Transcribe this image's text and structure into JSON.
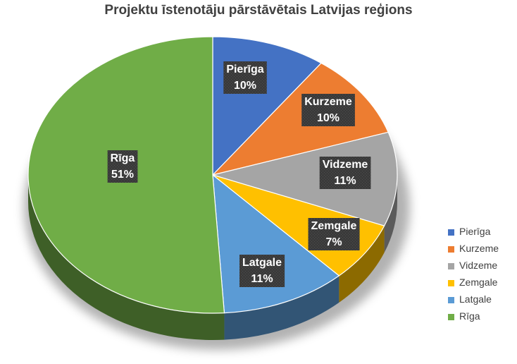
{
  "chart_data": {
    "type": "pie",
    "title": "Projektu īstenotāju pārstāvētais Latvijas reģions",
    "legend_position": "right",
    "slices": [
      {
        "label": "Pierīga",
        "value": 10,
        "value_label": "10%",
        "color": "#4472C4"
      },
      {
        "label": "Kurzeme",
        "value": 10,
        "value_label": "10%",
        "color": "#ED7D31"
      },
      {
        "label": "Vidzeme",
        "value": 11,
        "value_label": "11%",
        "color": "#A5A5A5"
      },
      {
        "label": "Zemgale",
        "value": 7,
        "value_label": "7%",
        "color": "#FFC000"
      },
      {
        "label": "Latgale",
        "value": 11,
        "value_label": "11%",
        "color": "#5B9BD5"
      },
      {
        "label": "Rīga",
        "value": 51,
        "value_label": "51%",
        "color": "#70AD47"
      }
    ]
  }
}
